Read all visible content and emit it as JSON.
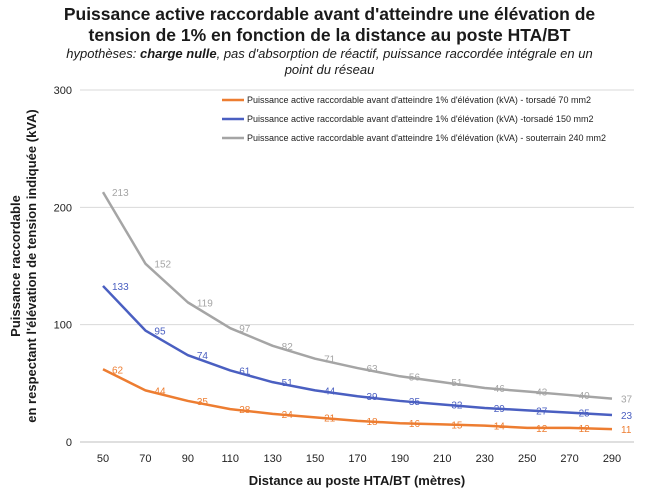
{
  "chart_data": {
    "type": "line",
    "title_line1": "Puissance active raccordable avant d'atteindre une élévation de",
    "title_line2": "tension de 1% en fonction de la distance au poste HTA/BT",
    "subtitle_prefix": "hypothèses: ",
    "subtitle_bold": "charge nulle",
    "subtitle_rest": ", pas d'absorption de réactif, puissance raccordée intégrale en un",
    "subtitle_line2": "point du réseau",
    "xlabel": "Distance au poste HTA/BT (mètres)",
    "ylabel_line1": "Puissance raccordable",
    "ylabel_line2": "en respectant l'élévation de tension indiquée (kVA)",
    "x": [
      50,
      70,
      90,
      110,
      130,
      150,
      170,
      190,
      210,
      230,
      250,
      270,
      290
    ],
    "x_tick_labels": [
      "50",
      "70",
      "90",
      "110",
      "130",
      "150",
      "170",
      "190",
      "210",
      "230",
      "250",
      "270",
      "290"
    ],
    "ylim": [
      0,
      300
    ],
    "y_ticks": [
      0,
      100,
      200,
      300
    ],
    "y_tick_labels": [
      "0",
      "100",
      "200",
      "300"
    ],
    "grid": "horizontal",
    "legend_position": "top-right",
    "series": [
      {
        "name": "Puissance active raccordable avant d'atteindre 1% d'élévation (kVA) - torsadé 70 mm2",
        "color": "#ed7d31",
        "values": [
          62,
          44,
          35,
          28,
          24,
          21,
          18,
          16,
          15,
          14,
          12,
          12,
          11
        ],
        "labels": [
          "62",
          "44",
          "35",
          "28",
          "24",
          "21",
          "18",
          "16",
          "15",
          "14",
          "12",
          "12",
          "11"
        ]
      },
      {
        "name": "Puissance active raccordable avant d'atteindre 1% d'élévation (kVA) -torsadé 150 mm2",
        "color": "#4a5fc1",
        "values": [
          133,
          95,
          74,
          61,
          51,
          44,
          39,
          35,
          32,
          29,
          27,
          25,
          23
        ],
        "labels": [
          "133",
          "95",
          "74",
          "61",
          "51",
          "44",
          "39",
          "35",
          "32",
          "29",
          "27",
          "25",
          "23"
        ]
      },
      {
        "name": "Puissance active raccordable avant d'atteindre 1% d'élévation (kVA) - souterrain 240 mm2",
        "color": "#a5a5a5",
        "values": [
          213,
          152,
          119,
          97,
          82,
          71,
          63,
          56,
          51,
          46,
          43,
          40,
          37
        ],
        "labels": [
          "213",
          "152",
          "119",
          "97",
          "82",
          "71",
          "63",
          "56",
          "51",
          "46",
          "43",
          "40",
          "37"
        ]
      }
    ]
  }
}
